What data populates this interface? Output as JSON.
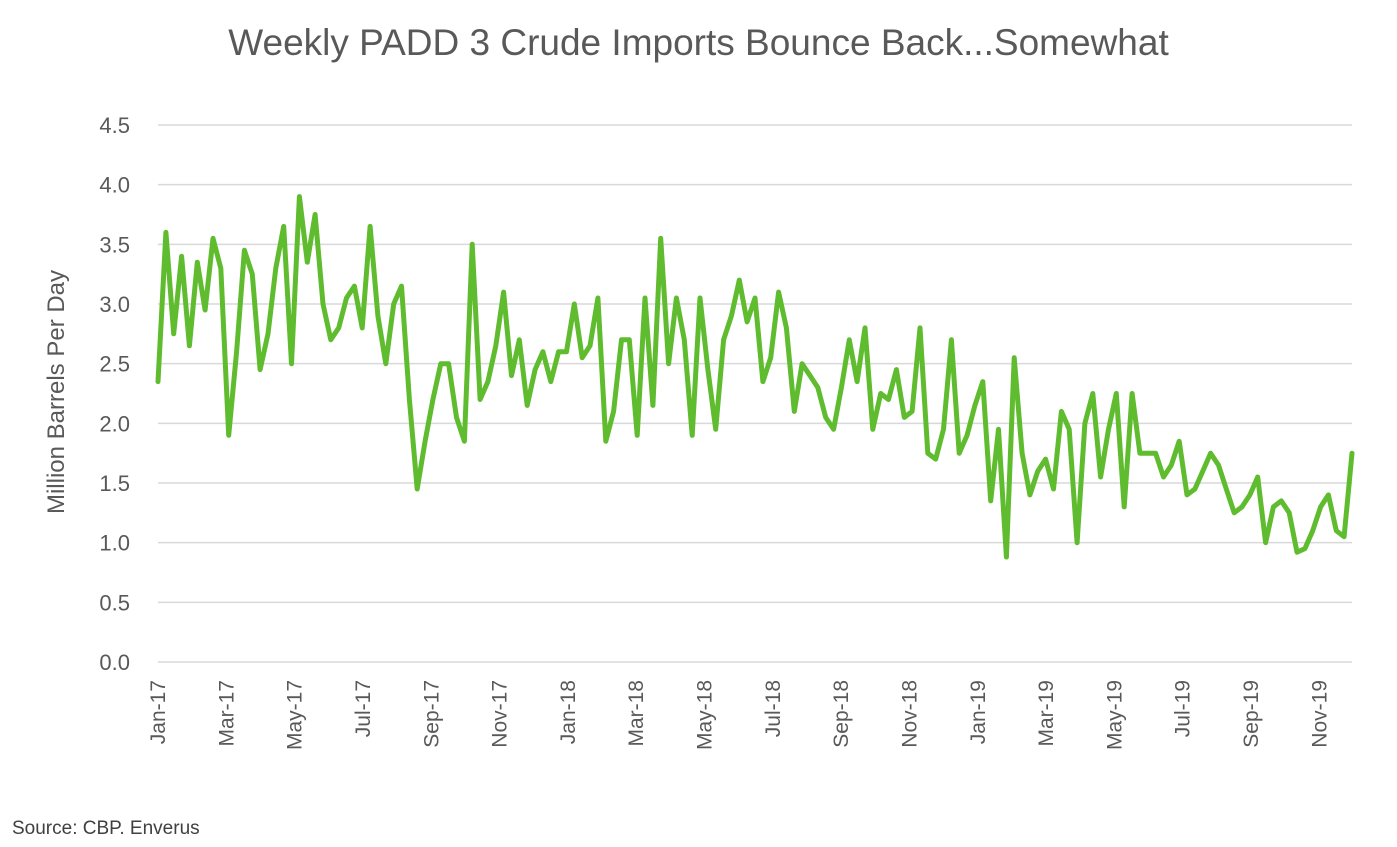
{
  "chart_data": {
    "type": "line",
    "title": "Weekly PADD 3 Crude Imports  Bounce Back...Somewhat",
    "xlabel": "",
    "ylabel": "Million Barrels Per Day",
    "ylim": [
      0,
      4.5
    ],
    "yticks": [
      "0.0",
      "0.5",
      "1.0",
      "1.5",
      "2.0",
      "2.5",
      "3.0",
      "3.5",
      "4.0",
      "4.5"
    ],
    "xticks": [
      "Jan-17",
      "Mar-17",
      "May-17",
      "Jul-17",
      "Sep-17",
      "Nov-17",
      "Jan-18",
      "Mar-18",
      "May-18",
      "Jul-18",
      "Sep-18",
      "Nov-18",
      "Jan-19",
      "Mar-19",
      "May-19",
      "Jul-19",
      "Sep-19",
      "Nov-19"
    ],
    "grid": true,
    "line_color": "#5fbc2f",
    "x_note": "weekly observations, Jan-2017 through Dec-2019",
    "series": [
      {
        "values": [
          2.35,
          3.6,
          2.75,
          3.4,
          2.65,
          3.35,
          2.95,
          3.55,
          3.3,
          1.9,
          2.6,
          3.45,
          3.25,
          2.45,
          2.75,
          3.3,
          3.65,
          2.5,
          3.9,
          3.35,
          3.75,
          3.0,
          2.7,
          2.8,
          3.05,
          3.15,
          2.8,
          3.65,
          2.9,
          2.5,
          3.0,
          3.15,
          2.2,
          1.45,
          1.85,
          2.2,
          2.5,
          2.5,
          2.05,
          1.85,
          3.5,
          2.2,
          2.35,
          2.65,
          3.1,
          2.4,
          2.7,
          2.15,
          2.45,
          2.6,
          2.35,
          2.6,
          2.6,
          3.0,
          2.55,
          2.65,
          3.05,
          1.85,
          2.1,
          2.7,
          2.7,
          1.9,
          3.05,
          2.15,
          3.55,
          2.5,
          3.05,
          2.7,
          1.9,
          3.05,
          2.45,
          1.95,
          2.7,
          2.9,
          3.2,
          2.85,
          3.05,
          2.35,
          2.55,
          3.1,
          2.8,
          2.1,
          2.5,
          2.4,
          2.3,
          2.05,
          1.95,
          2.3,
          2.7,
          2.35,
          2.8,
          1.95,
          2.25,
          2.2,
          2.45,
          2.05,
          2.1,
          2.8,
          1.75,
          1.7,
          1.95,
          2.7,
          1.75,
          1.9,
          2.15,
          2.35,
          1.35,
          1.95,
          0.88,
          2.55,
          1.75,
          1.4,
          1.6,
          1.7,
          1.45,
          2.1,
          1.95,
          1.0,
          2.0,
          2.25,
          1.55,
          1.95,
          2.25,
          1.3,
          2.25,
          1.75,
          1.75,
          1.75,
          1.55,
          1.65,
          1.85,
          1.4,
          1.45,
          1.6,
          1.75,
          1.65,
          1.45,
          1.25,
          1.3,
          1.4,
          1.55,
          1.0,
          1.3,
          1.35,
          1.25,
          0.92,
          0.95,
          1.1,
          1.3,
          1.4,
          1.1,
          1.05,
          1.75
        ]
      }
    ]
  },
  "source": "Source:  CBP. Enverus"
}
